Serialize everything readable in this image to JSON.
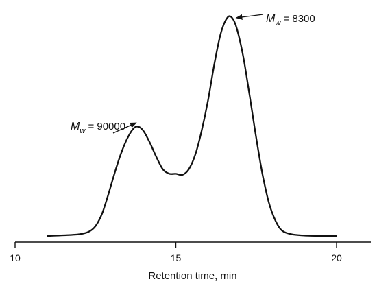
{
  "chart_data": {
    "type": "line",
    "title": "",
    "xlabel": "Retention time, min",
    "ylabel": "",
    "xlim": [
      10,
      21
    ],
    "ylim": [
      0,
      1
    ],
    "x_ticks": [
      10,
      15,
      20
    ],
    "x_tick_labels": [
      "10",
      "15",
      "20"
    ],
    "grid": false,
    "series": [
      {
        "x": [
          11.0,
          11.5,
          12.0,
          12.3,
          12.5,
          12.7,
          12.9,
          13.1,
          13.3,
          13.5,
          13.7,
          13.85,
          14.0,
          14.2,
          14.4,
          14.6,
          14.8,
          15.0,
          15.2,
          15.4,
          15.6,
          15.8,
          16.0,
          16.2,
          16.4,
          16.6,
          16.75,
          16.9,
          17.1,
          17.3,
          17.5,
          17.7,
          17.9,
          18.1,
          18.3,
          18.6,
          19.0,
          19.5,
          20.0
        ],
        "y": [
          0.0,
          0.003,
          0.008,
          0.02,
          0.045,
          0.1,
          0.19,
          0.29,
          0.38,
          0.45,
          0.495,
          0.5,
          0.48,
          0.425,
          0.36,
          0.305,
          0.285,
          0.285,
          0.28,
          0.305,
          0.37,
          0.48,
          0.62,
          0.79,
          0.93,
          1.0,
          1.0,
          0.95,
          0.82,
          0.64,
          0.45,
          0.28,
          0.15,
          0.07,
          0.025,
          0.008,
          0.002,
          0.0,
          0.0
        ]
      }
    ],
    "annotations": [
      {
        "symbol": "M",
        "subscript": "w",
        "text": " = 90000",
        "x": 13.9,
        "y": 0.5
      },
      {
        "symbol": "M",
        "subscript": "w",
        "text": " = 8300",
        "x": 16.75,
        "y": 1.0
      }
    ]
  }
}
